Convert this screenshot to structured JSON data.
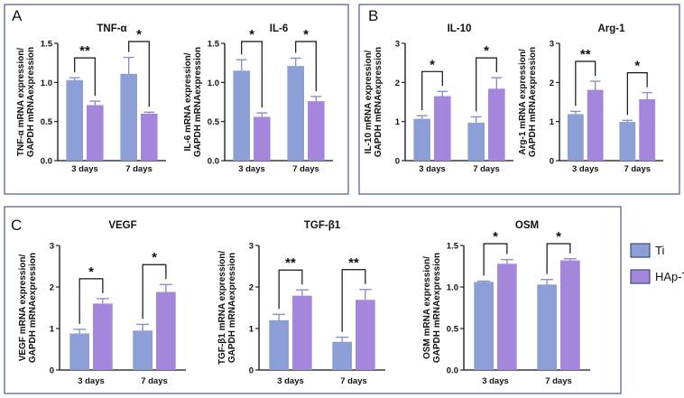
{
  "panels": [
    {
      "letter": "A",
      "box": "A"
    },
    {
      "letter": "B",
      "box": "B"
    },
    {
      "letter": "C",
      "box": "C"
    }
  ],
  "colors": {
    "Ti": "#8b9fd6",
    "HAp-Ti": "#a487dc",
    "error": "#8a90c8",
    "frame": "#4a5a8c"
  },
  "legend": [
    {
      "name": "Ti",
      "color": "#8b9fd6"
    },
    {
      "name": "HAp-Ti",
      "color": "#a487dc"
    }
  ],
  "chart_data": [
    {
      "id": "tnf",
      "panel": "A",
      "type": "bar",
      "title": "TNF-α",
      "ylabel": [
        "TNF-α mRNA expression/",
        "GAPDH mRNAexpression"
      ],
      "ylim": [
        0,
        1.5
      ],
      "yticks": [
        "0.0",
        "0.5",
        "1.0",
        "1.5"
      ],
      "ytick_values": [
        0,
        0.5,
        1.0,
        1.5
      ],
      "categories": [
        "3 days",
        "7 days"
      ],
      "series": [
        {
          "name": "Ti",
          "values": [
            1.03,
            1.11
          ],
          "errors": [
            0.03,
            0.21
          ]
        },
        {
          "name": "HAp-Ti",
          "values": [
            0.71,
            0.6
          ],
          "errors": [
            0.05,
            0.02
          ]
        }
      ],
      "significance": [
        "**",
        "*"
      ]
    },
    {
      "id": "il6",
      "panel": "A",
      "type": "bar",
      "title": "IL-6",
      "ylabel": [
        "IL-6 mRNA expression/",
        "GAPDH mRNAexpression"
      ],
      "ylim": [
        0,
        1.5
      ],
      "yticks": [
        "0.0",
        "0.5",
        "1.0",
        "1.5"
      ],
      "ytick_values": [
        0,
        0.5,
        1.0,
        1.5
      ],
      "categories": [
        "3 days",
        "7 days"
      ],
      "series": [
        {
          "name": "Ti",
          "values": [
            1.15,
            1.21
          ],
          "errors": [
            0.14,
            0.1
          ]
        },
        {
          "name": "HAp-Ti",
          "values": [
            0.56,
            0.76
          ],
          "errors": [
            0.05,
            0.06
          ]
        }
      ],
      "significance": [
        "*",
        "*"
      ]
    },
    {
      "id": "il10",
      "panel": "B",
      "type": "bar",
      "title": "IL-10",
      "ylabel": [
        "IL-10 mRNA expression/",
        "GAPDH mRNAexpression"
      ],
      "ylim": [
        0,
        3
      ],
      "yticks": [
        "0",
        "1",
        "2",
        "3"
      ],
      "ytick_values": [
        0,
        1,
        2,
        3
      ],
      "categories": [
        "3 days",
        "7 days"
      ],
      "series": [
        {
          "name": "Ti",
          "values": [
            1.07,
            0.97
          ],
          "errors": [
            0.08,
            0.15
          ]
        },
        {
          "name": "HAp-Ti",
          "values": [
            1.65,
            1.84
          ],
          "errors": [
            0.12,
            0.28
          ]
        }
      ],
      "significance": [
        "*",
        "*"
      ]
    },
    {
      "id": "arg1",
      "panel": "B",
      "type": "bar",
      "title": "Arg-1",
      "ylabel": [
        "Arg-1 mRNA expression/",
        "GAPDH mRNAexpression"
      ],
      "ylim": [
        0,
        3
      ],
      "yticks": [
        "0",
        "1",
        "2",
        "3"
      ],
      "ytick_values": [
        0,
        1,
        2,
        3
      ],
      "categories": [
        "3 days",
        "7 days"
      ],
      "series": [
        {
          "name": "Ti",
          "values": [
            1.19,
            0.99
          ],
          "errors": [
            0.07,
            0.04
          ]
        },
        {
          "name": "HAp-Ti",
          "values": [
            1.81,
            1.57
          ],
          "errors": [
            0.22,
            0.17
          ]
        }
      ],
      "significance": [
        "**",
        "*"
      ]
    },
    {
      "id": "vegf",
      "panel": "C",
      "type": "bar",
      "title": "VEGF",
      "ylabel": [
        "VEGF mRNA expression/",
        "GAPDH mRNAexpression"
      ],
      "ylim": [
        0,
        3
      ],
      "yticks": [
        "0",
        "1",
        "2",
        "3"
      ],
      "ytick_values": [
        0,
        1,
        2,
        3
      ],
      "categories": [
        "3 days",
        "7 days"
      ],
      "series": [
        {
          "name": "Ti",
          "values": [
            0.88,
            0.95
          ],
          "errors": [
            0.1,
            0.15
          ]
        },
        {
          "name": "HAp-Ti",
          "values": [
            1.6,
            1.88
          ],
          "errors": [
            0.12,
            0.18
          ]
        }
      ],
      "significance": [
        "*",
        "*"
      ]
    },
    {
      "id": "tgfb1",
      "panel": "C",
      "type": "bar",
      "title": "TGF-β1",
      "ylabel": [
        "TGF-β1 mRNA expression/",
        "GAPDH mRNAexpression"
      ],
      "ylim": [
        0,
        3
      ],
      "yticks": [
        "0",
        "1",
        "2",
        "3"
      ],
      "ytick_values": [
        0,
        1,
        2,
        3
      ],
      "categories": [
        "3 days",
        "7 days"
      ],
      "series": [
        {
          "name": "Ti",
          "values": [
            1.2,
            0.68
          ],
          "errors": [
            0.14,
            0.11
          ]
        },
        {
          "name": "HAp-Ti",
          "values": [
            1.79,
            1.69
          ],
          "errors": [
            0.14,
            0.25
          ]
        }
      ],
      "significance": [
        "**",
        "**"
      ]
    },
    {
      "id": "osm",
      "panel": "C",
      "type": "bar",
      "title": "OSM",
      "ylabel": [
        "OSM mRNA expression/",
        "GAPDH mRNAexpression"
      ],
      "ylim": [
        0,
        1.5
      ],
      "yticks": [
        "0.0",
        "0.5",
        "1.0",
        "1.5"
      ],
      "ytick_values": [
        0,
        0.5,
        1.0,
        1.5
      ],
      "categories": [
        "3 days",
        "7 days"
      ],
      "series": [
        {
          "name": "Ti",
          "values": [
            1.06,
            1.03
          ],
          "errors": [
            0.01,
            0.06
          ]
        },
        {
          "name": "HAp-Ti",
          "values": [
            1.28,
            1.32
          ],
          "errors": [
            0.05,
            0.02
          ]
        }
      ],
      "significance": [
        "*",
        "*"
      ]
    }
  ]
}
